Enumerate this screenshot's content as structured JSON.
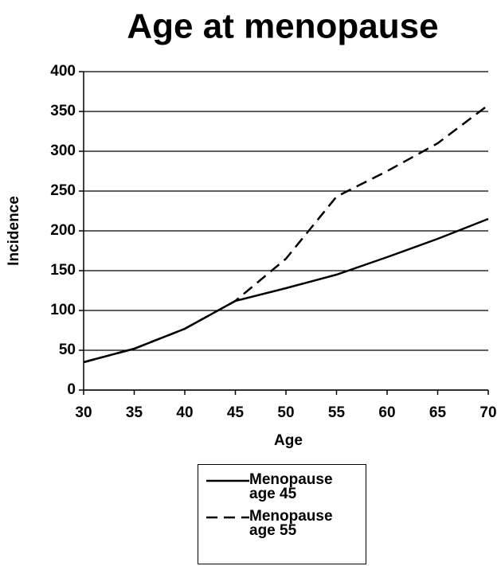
{
  "chart_data": {
    "type": "line",
    "title": "Age at menopause",
    "x_label": "Age",
    "y_label": "Incidence",
    "x": [
      30,
      35,
      40,
      45,
      50,
      55,
      60,
      65,
      70
    ],
    "series": [
      {
        "name": "Menopause age 45",
        "color": "#000000",
        "dash": false,
        "values": [
          35,
          52,
          77,
          112,
          128,
          145,
          167,
          190,
          215
        ]
      },
      {
        "name": "Menopause age 55",
        "color": "#000000",
        "dash": true,
        "values": [
          35,
          52,
          77,
          112,
          165,
          243,
          275,
          310,
          358
        ]
      }
    ],
    "xlim": [
      30,
      70
    ],
    "xticks": [
      30,
      35,
      40,
      45,
      50,
      55,
      60,
      65,
      70
    ],
    "ylim": [
      0,
      400
    ],
    "yticks": [
      0,
      50,
      100,
      150,
      200,
      250,
      300,
      350,
      400
    ],
    "grid": true
  }
}
